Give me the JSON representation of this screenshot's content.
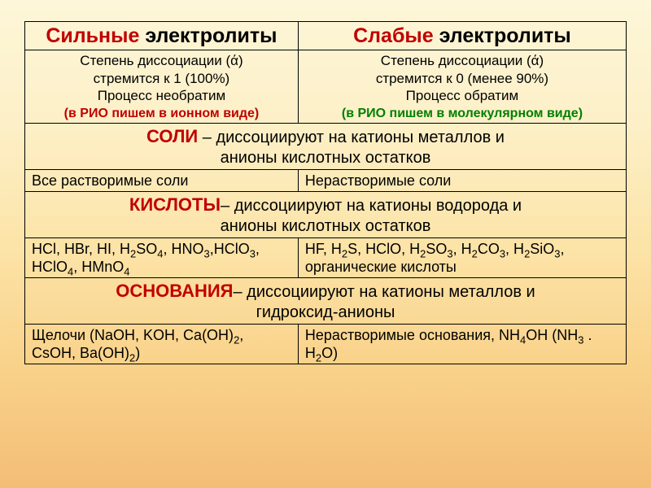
{
  "colors": {
    "accent": "#c00000",
    "note_strong_red": "#c00000",
    "note_strong_green": "#008000",
    "text": "#000000",
    "border": "#000000",
    "bg_top": "#fdf6d8",
    "bg_bottom": "#f4bd76"
  },
  "typography": {
    "font_family": "Arial",
    "header_fontsize": 25,
    "section_title_fontsize": 22,
    "section_body_fontsize": 20,
    "cell_fontsize": 18,
    "desc_fontsize": 17,
    "note_fontsize": 16
  },
  "header": {
    "left_accent": "Сильные",
    "left_rest": " электролиты",
    "right_accent": "Слабые",
    "right_rest": " электролиты"
  },
  "desc": {
    "left": {
      "line1": "Степень диссоциации (ά)",
      "line2": "стремится к 1 (100%)",
      "line3": "Процесс необратим",
      "note": "(в РИО пишем в ионном виде)"
    },
    "right": {
      "line1": "Степень диссоциации (ά)",
      "line2": "стремится к 0 (менее 90%)",
      "line3": "Процесс обратим",
      "note": "(в РИО пишем в молекулярном виде)"
    }
  },
  "salts": {
    "title": "СОЛИ",
    "body1": " – диссоциируют на катионы металлов и",
    "body2": "анионы кислотных остатков",
    "left": "Все растворимые соли",
    "right": "Нерастворимые соли"
  },
  "acids": {
    "title": "КИСЛОТЫ",
    "body1": "– диссоциируют на катионы водорода и",
    "body2": "анионы кислотных остатков",
    "left_html": "HCl, HBr, HI, H<sub>2</sub>SO<sub>4</sub>, HNO<sub>3</sub>,HClO<sub>3</sub>, HClO<sub>4</sub>, HMnO<sub>4</sub>",
    "right_html": "HF, H<sub>2</sub>S, HClO, H<sub>2</sub>SO<sub>3</sub>, H<sub>2</sub>CO<sub>3</sub>, H<sub>2</sub>SiO<sub>3</sub>, органические кислоты"
  },
  "bases": {
    "title": "ОСНОВАНИЯ",
    "body1": "– диссоциируют на катионы металлов и",
    "body2": "гидроксид-анионы",
    "left_html": "Щелочи (NaOH, KOH, Ca(OH)<sub>2</sub>, CsOH, Ba(OH)<sub>2</sub>)",
    "right_html": "Нерастворимые основания, NH<sub>4</sub>OH (NH<sub>3</sub> . H<sub>2</sub>O)"
  }
}
